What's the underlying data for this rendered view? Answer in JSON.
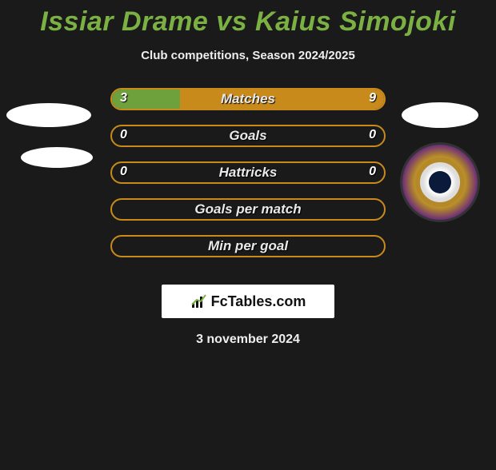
{
  "title_color": "#7bb043",
  "title": "Issiar Drame vs Kaius Simojoki",
  "subtitle": "Club competitions, Season 2024/2025",
  "bar_border_color": "#c88a1a",
  "left_fill_color": "#6ea03c",
  "right_fill_color": "#c88a1a",
  "rows": [
    {
      "label": "Matches",
      "left": "3",
      "right": "9",
      "left_pct": 25,
      "right_pct": 75
    },
    {
      "label": "Goals",
      "left": "0",
      "right": "0",
      "left_pct": 0,
      "right_pct": 0
    },
    {
      "label": "Hattricks",
      "left": "0",
      "right": "0",
      "left_pct": 0,
      "right_pct": 0
    },
    {
      "label": "Goals per match",
      "left": "",
      "right": "",
      "left_pct": 0,
      "right_pct": 0
    },
    {
      "label": "Min per goal",
      "left": "",
      "right": "",
      "left_pct": 0,
      "right_pct": 0
    }
  ],
  "brand": "FcTables.com",
  "date": "3 november 2024"
}
